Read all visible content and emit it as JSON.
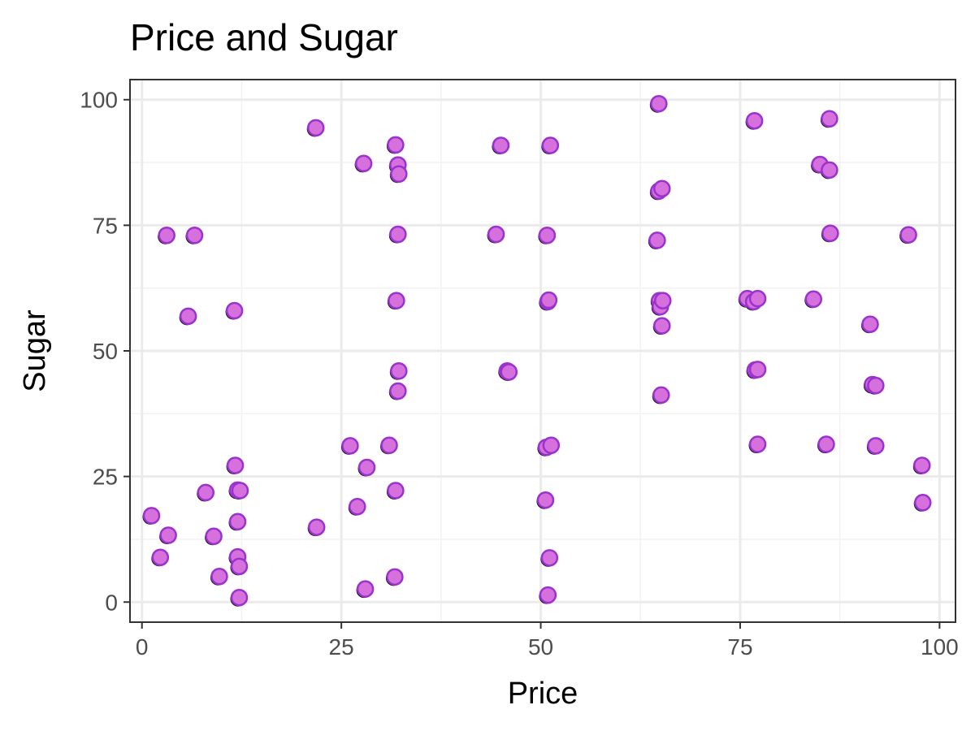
{
  "chart_data": {
    "type": "scatter",
    "title": "Price and Sugar",
    "xlabel": "Price",
    "ylabel": "Sugar",
    "xlim": [
      -1.5,
      102
    ],
    "ylim": [
      -4,
      104
    ],
    "xticks": [
      0,
      25,
      50,
      75,
      100
    ],
    "yticks": [
      0,
      25,
      50,
      75,
      100
    ],
    "grid": true,
    "legend": "none",
    "colors": {
      "point_fill": "#d670dd",
      "point_stroke": "#9a32cd",
      "shadow": "#000000",
      "grid_major": "#ebebeb",
      "grid_minor": "#f2f2f2",
      "panel_border": "#333333"
    },
    "points": [
      {
        "x": 1.2,
        "y": 17.2
      },
      {
        "x": 2.3,
        "y": 8.9
      },
      {
        "x": 3.3,
        "y": 13.3
      },
      {
        "x": 3.1,
        "y": 73.0
      },
      {
        "x": 6.6,
        "y": 73.0
      },
      {
        "x": 5.8,
        "y": 56.9
      },
      {
        "x": 8.0,
        "y": 21.8
      },
      {
        "x": 9.0,
        "y": 13.1
      },
      {
        "x": 9.7,
        "y": 5.1
      },
      {
        "x": 11.6,
        "y": 58.0
      },
      {
        "x": 11.7,
        "y": 27.2
      },
      {
        "x": 12.0,
        "y": 22.3
      },
      {
        "x": 12.3,
        "y": 22.2
      },
      {
        "x": 12.0,
        "y": 16.0
      },
      {
        "x": 12.0,
        "y": 9.0
      },
      {
        "x": 12.2,
        "y": 7.1
      },
      {
        "x": 12.2,
        "y": 0.9
      },
      {
        "x": 21.8,
        "y": 94.4
      },
      {
        "x": 21.9,
        "y": 14.9
      },
      {
        "x": 26.1,
        "y": 31.1
      },
      {
        "x": 27.0,
        "y": 19.0
      },
      {
        "x": 27.8,
        "y": 87.3
      },
      {
        "x": 28.0,
        "y": 2.6
      },
      {
        "x": 28.2,
        "y": 26.8
      },
      {
        "x": 31.0,
        "y": 31.2
      },
      {
        "x": 31.7,
        "y": 5.0
      },
      {
        "x": 31.8,
        "y": 22.2
      },
      {
        "x": 31.8,
        "y": 91.0
      },
      {
        "x": 31.9,
        "y": 60.0
      },
      {
        "x": 32.1,
        "y": 87.0
      },
      {
        "x": 32.2,
        "y": 85.2
      },
      {
        "x": 32.1,
        "y": 73.2
      },
      {
        "x": 32.2,
        "y": 46.0
      },
      {
        "x": 32.1,
        "y": 42.0
      },
      {
        "x": 44.4,
        "y": 73.2
      },
      {
        "x": 45.0,
        "y": 90.9
      },
      {
        "x": 45.8,
        "y": 46.0
      },
      {
        "x": 46.0,
        "y": 45.8
      },
      {
        "x": 50.6,
        "y": 20.3
      },
      {
        "x": 50.8,
        "y": 73.0
      },
      {
        "x": 50.9,
        "y": 59.8
      },
      {
        "x": 51.0,
        "y": 60.1
      },
      {
        "x": 51.2,
        "y": 90.9
      },
      {
        "x": 50.7,
        "y": 30.8
      },
      {
        "x": 51.3,
        "y": 31.2
      },
      {
        "x": 51.1,
        "y": 8.8
      },
      {
        "x": 50.9,
        "y": 1.4
      },
      {
        "x": 64.8,
        "y": 99.2
      },
      {
        "x": 64.8,
        "y": 81.8
      },
      {
        "x": 65.2,
        "y": 82.3
      },
      {
        "x": 64.6,
        "y": 72.0
      },
      {
        "x": 64.9,
        "y": 60.0
      },
      {
        "x": 65.0,
        "y": 58.8
      },
      {
        "x": 65.3,
        "y": 60.0
      },
      {
        "x": 65.2,
        "y": 55.0
      },
      {
        "x": 65.1,
        "y": 41.2
      },
      {
        "x": 75.9,
        "y": 60.4
      },
      {
        "x": 76.7,
        "y": 59.8
      },
      {
        "x": 77.2,
        "y": 60.4
      },
      {
        "x": 76.8,
        "y": 95.8
      },
      {
        "x": 76.9,
        "y": 46.2
      },
      {
        "x": 77.2,
        "y": 46.3
      },
      {
        "x": 77.2,
        "y": 31.4
      },
      {
        "x": 84.2,
        "y": 60.3
      },
      {
        "x": 85.0,
        "y": 87.1
      },
      {
        "x": 85.8,
        "y": 31.4
      },
      {
        "x": 86.2,
        "y": 96.2
      },
      {
        "x": 86.2,
        "y": 86.0
      },
      {
        "x": 86.3,
        "y": 73.4
      },
      {
        "x": 91.3,
        "y": 55.3
      },
      {
        "x": 91.6,
        "y": 43.3
      },
      {
        "x": 92.0,
        "y": 43.1
      },
      {
        "x": 92.0,
        "y": 31.1
      },
      {
        "x": 96.1,
        "y": 73.1
      },
      {
        "x": 97.8,
        "y": 27.2
      },
      {
        "x": 97.9,
        "y": 19.8
      }
    ]
  }
}
